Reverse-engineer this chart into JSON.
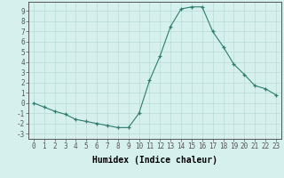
{
  "x": [
    0,
    1,
    2,
    3,
    4,
    5,
    6,
    7,
    8,
    9,
    10,
    11,
    12,
    13,
    14,
    15,
    16,
    17,
    18,
    19,
    20,
    21,
    22,
    23
  ],
  "y": [
    0.0,
    -0.4,
    -0.8,
    -1.1,
    -1.6,
    -1.8,
    -2.0,
    -2.2,
    -2.4,
    -2.4,
    -1.0,
    2.2,
    4.6,
    7.5,
    9.2,
    9.4,
    9.4,
    7.0,
    5.5,
    3.8,
    2.8,
    1.7,
    1.4,
    0.8
  ],
  "xlabel": "Humidex (Indice chaleur)",
  "xlim": [
    -0.5,
    23.5
  ],
  "ylim": [
    -3.5,
    9.9
  ],
  "yticks": [
    -3,
    -2,
    -1,
    0,
    1,
    2,
    3,
    4,
    5,
    6,
    7,
    8,
    9
  ],
  "xticks": [
    0,
    1,
    2,
    3,
    4,
    5,
    6,
    7,
    8,
    9,
    10,
    11,
    12,
    13,
    14,
    15,
    16,
    17,
    18,
    19,
    20,
    21,
    22,
    23
  ],
  "line_color": "#2e7d6e",
  "marker": "+",
  "bg_color": "#d6f0ee",
  "grid_color": "#b8dbd8",
  "tick_fontsize": 5.5,
  "label_fontsize": 7
}
